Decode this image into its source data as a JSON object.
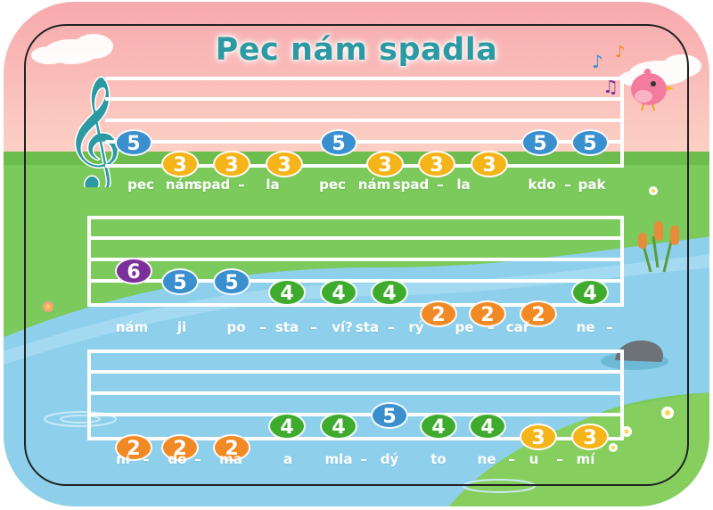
{
  "title": "Pec nám spadla",
  "note_colors": {
    "2": "#f18a24",
    "3": "#f5b418",
    "4": "#3fab2e",
    "5": "#3a8fce",
    "6": "#7b2f9a"
  },
  "icons": [
    "treble-clef-icon",
    "music-note-icon",
    "bird-icon",
    "cloud-icon",
    "rock-icon",
    "cattail-icon",
    "flower-icon"
  ],
  "rows": [
    {
      "notes": [
        "5",
        "3",
        "3",
        "3",
        "5",
        "3",
        "3",
        "3",
        "5",
        "5"
      ],
      "lyrics": [
        "pec",
        "nám",
        "spad",
        "–",
        "la",
        "pec",
        "nám",
        "spad",
        "–",
        "la",
        "kdo",
        "–",
        "pak"
      ]
    },
    {
      "notes": [
        "6",
        "5",
        "5",
        "4",
        "4",
        "4",
        "2",
        "2",
        "2",
        "4"
      ],
      "lyrics": [
        "nám",
        "ji",
        "po",
        "–",
        "sta",
        "–",
        "ví?",
        "sta",
        "–",
        "rý",
        "pe",
        "–",
        "cař",
        "ne",
        "–"
      ]
    },
    {
      "notes": [
        "2",
        "2",
        "2",
        "4",
        "4",
        "5",
        "4",
        "4",
        "3",
        "3"
      ],
      "lyrics": [
        "ní",
        "–",
        "do",
        "–",
        "ma",
        "a",
        "mla",
        "–",
        "dý",
        "to",
        "ne",
        "–",
        "u",
        "–",
        "mí"
      ]
    }
  ]
}
